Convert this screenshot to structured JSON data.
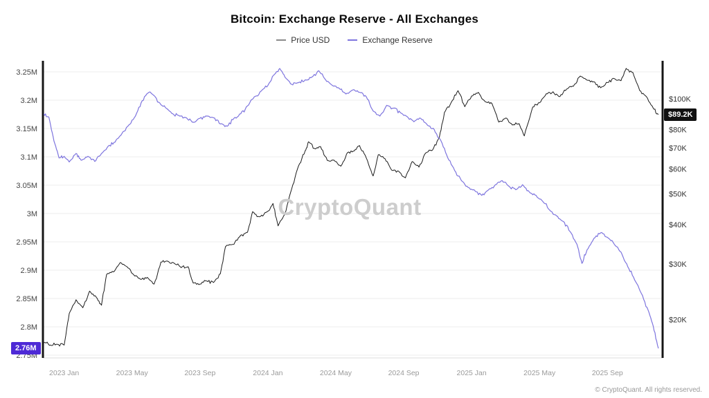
{
  "header": {
    "title": "Bitcoin: Exchange Reserve - All Exchanges"
  },
  "legend": [
    {
      "label": "Price USD",
      "color": "#8a8a8a"
    },
    {
      "label": "Exchange Reserve",
      "color": "#7d74de"
    }
  ],
  "badges": {
    "reserve_current": "2.76M",
    "reserve_badge_color": "#4e2ad6",
    "price_current": "$89.2K",
    "price_badge_color": "#111111"
  },
  "watermark": "CryptoQuant",
  "footer": "© CryptoQuant. All rights reserved.",
  "chart_data": {
    "type": "line",
    "title": "Bitcoin: Exchange Reserve - All Exchanges",
    "x_unit": "months since 2023 Jan",
    "x_domain": [
      -1.25,
      35.25
    ],
    "x_ticks": [
      {
        "m": 0,
        "label": "2023 Jan"
      },
      {
        "m": 4,
        "label": "2023 May"
      },
      {
        "m": 8,
        "label": "2023 Sep"
      },
      {
        "m": 12,
        "label": "2024 Jan"
      },
      {
        "m": 16,
        "label": "2024 May"
      },
      {
        "m": 20,
        "label": "2024 Sep"
      },
      {
        "m": 24,
        "label": "2025 Jan"
      },
      {
        "m": 28,
        "label": "2025 May"
      },
      {
        "m": 32,
        "label": "2025 Sep"
      }
    ],
    "left_axis": {
      "name": "Exchange Reserve (BTC)",
      "scale": "linear",
      "min": 2.75,
      "max": 3.25,
      "ticks": [
        {
          "v": 3.25,
          "label": "3.25M"
        },
        {
          "v": 3.2,
          "label": "3.2M"
        },
        {
          "v": 3.15,
          "label": "3.15M"
        },
        {
          "v": 3.1,
          "label": "3.1M"
        },
        {
          "v": 3.05,
          "label": "3.05M"
        },
        {
          "v": 3.0,
          "label": "3M"
        },
        {
          "v": 2.95,
          "label": "2.95M"
        },
        {
          "v": 2.9,
          "label": "2.9M"
        },
        {
          "v": 2.85,
          "label": "2.85M"
        },
        {
          "v": 2.8,
          "label": "2.8M"
        },
        {
          "v": 2.75,
          "label": "2.75M"
        }
      ]
    },
    "right_axis": {
      "name": "Price USD",
      "scale": "log",
      "ticks": [
        {
          "v": 100,
          "label": "$100K"
        },
        {
          "v": 80,
          "label": "$80K"
        },
        {
          "v": 70,
          "label": "$70K"
        },
        {
          "v": 60,
          "label": "$60K"
        },
        {
          "v": 50,
          "label": "$50K"
        },
        {
          "v": 40,
          "label": "$40K"
        },
        {
          "v": 30,
          "label": "$30K"
        },
        {
          "v": 20,
          "label": "$20K"
        }
      ]
    },
    "series": [
      {
        "name": "Price USD",
        "axis": "right",
        "color": "#1a1a1a",
        "unit": "thousand USD",
        "points": [
          [
            -1.2,
            16.9
          ],
          [
            -0.8,
            16.6
          ],
          [
            -0.4,
            16.7
          ],
          [
            0,
            16.6
          ],
          [
            0.3,
            20.9
          ],
          [
            0.7,
            23.1
          ],
          [
            1.1,
            21.8
          ],
          [
            1.5,
            24.6
          ],
          [
            1.9,
            23.5
          ],
          [
            2.2,
            22.2
          ],
          [
            2.5,
            27.8
          ],
          [
            2.9,
            28.3
          ],
          [
            3.3,
            30.3
          ],
          [
            3.7,
            29.4
          ],
          [
            4.1,
            27.7
          ],
          [
            4.5,
            26.8
          ],
          [
            4.9,
            27.2
          ],
          [
            5.3,
            25.9
          ],
          [
            5.7,
            30.4
          ],
          [
            6.1,
            30.6
          ],
          [
            6.5,
            30.1
          ],
          [
            6.9,
            29.2
          ],
          [
            7.3,
            29.4
          ],
          [
            7.6,
            26.1
          ],
          [
            8,
            25.9
          ],
          [
            8.4,
            26.5
          ],
          [
            8.8,
            26.2
          ],
          [
            9.2,
            27.9
          ],
          [
            9.5,
            34
          ],
          [
            10,
            34.6
          ],
          [
            10.4,
            37
          ],
          [
            10.8,
            37.8
          ],
          [
            11.1,
            43.9
          ],
          [
            11.5,
            42.3
          ],
          [
            11.9,
            43.7
          ],
          [
            12.3,
            46.6
          ],
          [
            12.6,
            39.6
          ],
          [
            13,
            43.1
          ],
          [
            13.4,
            51.8
          ],
          [
            13.8,
            61.2
          ],
          [
            14.2,
            68.5
          ],
          [
            14.4,
            73.1
          ],
          [
            14.8,
            69.4
          ],
          [
            15.1,
            70.6
          ],
          [
            15.5,
            63.8
          ],
          [
            15.9,
            63.9
          ],
          [
            16.3,
            61.2
          ],
          [
            16.7,
            67.6
          ],
          [
            17.1,
            68.5
          ],
          [
            17.4,
            71.1
          ],
          [
            17.8,
            64.9
          ],
          [
            18.2,
            57.0
          ],
          [
            18.5,
            66.5
          ],
          [
            18.9,
            64.6
          ],
          [
            19.3,
            59.4
          ],
          [
            19.7,
            59.0
          ],
          [
            20.1,
            56.2
          ],
          [
            20.5,
            63.3
          ],
          [
            20.9,
            60.8
          ],
          [
            21.3,
            67.4
          ],
          [
            21.7,
            68.8
          ],
          [
            22.1,
            75.6
          ],
          [
            22.4,
            90.5
          ],
          [
            22.8,
            97.4
          ],
          [
            23.2,
            106.1
          ],
          [
            23.6,
            94.4
          ],
          [
            24.0,
            102.1
          ],
          [
            24.4,
            104.8
          ],
          [
            24.8,
            97.9
          ],
          [
            25.2,
            96.6
          ],
          [
            25.6,
            84.4
          ],
          [
            26.0,
            86.9
          ],
          [
            26.4,
            82.6
          ],
          [
            26.8,
            83.4
          ],
          [
            27.1,
            76.3
          ],
          [
            27.6,
            94.2
          ],
          [
            28.0,
            97.1
          ],
          [
            28.4,
            103.8
          ],
          [
            28.8,
            105.3
          ],
          [
            29.2,
            101.6
          ],
          [
            29.6,
            107.4
          ],
          [
            30.0,
            109.6
          ],
          [
            30.4,
            118.0
          ],
          [
            30.8,
            114.6
          ],
          [
            31.2,
            113.3
          ],
          [
            31.6,
            108.4
          ],
          [
            32.0,
            112.6
          ],
          [
            32.4,
            115.9
          ],
          [
            32.8,
            114.1
          ],
          [
            33.1,
            124.8
          ],
          [
            33.5,
            121.1
          ],
          [
            33.9,
            106.2
          ],
          [
            34.3,
            101.5
          ],
          [
            34.7,
            93.4
          ],
          [
            35.0,
            89.2
          ]
        ]
      },
      {
        "name": "Exchange Reserve",
        "axis": "left",
        "color": "#7d74de",
        "unit": "million BTC",
        "points": [
          [
            -1.2,
            3.176
          ],
          [
            -0.9,
            3.17
          ],
          [
            -0.6,
            3.128
          ],
          [
            -0.3,
            3.098
          ],
          [
            0,
            3.101
          ],
          [
            0.3,
            3.091
          ],
          [
            0.7,
            3.106
          ],
          [
            1.0,
            3.094
          ],
          [
            1.4,
            3.101
          ],
          [
            1.8,
            3.092
          ],
          [
            2.2,
            3.106
          ],
          [
            2.6,
            3.119
          ],
          [
            3.0,
            3.126
          ],
          [
            3.4,
            3.141
          ],
          [
            3.8,
            3.156
          ],
          [
            4.2,
            3.172
          ],
          [
            4.6,
            3.199
          ],
          [
            5.0,
            3.214
          ],
          [
            5.3,
            3.208
          ],
          [
            5.7,
            3.192
          ],
          [
            6.0,
            3.186
          ],
          [
            6.4,
            3.176
          ],
          [
            6.8,
            3.172
          ],
          [
            7.2,
            3.169
          ],
          [
            7.6,
            3.161
          ],
          [
            8.0,
            3.168
          ],
          [
            8.4,
            3.172
          ],
          [
            8.8,
            3.169
          ],
          [
            9.2,
            3.158
          ],
          [
            9.6,
            3.154
          ],
          [
            10.0,
            3.168
          ],
          [
            10.4,
            3.176
          ],
          [
            10.8,
            3.19
          ],
          [
            11.2,
            3.206
          ],
          [
            11.6,
            3.216
          ],
          [
            12.0,
            3.226
          ],
          [
            12.4,
            3.246
          ],
          [
            12.7,
            3.256
          ],
          [
            13.0,
            3.241
          ],
          [
            13.4,
            3.228
          ],
          [
            13.8,
            3.231
          ],
          [
            14.2,
            3.236
          ],
          [
            14.6,
            3.241
          ],
          [
            15.0,
            3.252
          ],
          [
            15.4,
            3.236
          ],
          [
            15.8,
            3.226
          ],
          [
            16.2,
            3.221
          ],
          [
            16.6,
            3.211
          ],
          [
            17.0,
            3.218
          ],
          [
            17.4,
            3.214
          ],
          [
            17.8,
            3.206
          ],
          [
            18.2,
            3.181
          ],
          [
            18.6,
            3.172
          ],
          [
            19.0,
            3.191
          ],
          [
            19.4,
            3.186
          ],
          [
            19.8,
            3.178
          ],
          [
            20.2,
            3.171
          ],
          [
            20.6,
            3.162
          ],
          [
            21.0,
            3.168
          ],
          [
            21.4,
            3.156
          ],
          [
            21.8,
            3.148
          ],
          [
            22.2,
            3.128
          ],
          [
            22.6,
            3.098
          ],
          [
            23.0,
            3.076
          ],
          [
            23.4,
            3.058
          ],
          [
            23.8,
            3.046
          ],
          [
            24.2,
            3.04
          ],
          [
            24.6,
            3.032
          ],
          [
            25.0,
            3.042
          ],
          [
            25.4,
            3.051
          ],
          [
            25.8,
            3.058
          ],
          [
            26.2,
            3.048
          ],
          [
            26.6,
            3.042
          ],
          [
            27.0,
            3.051
          ],
          [
            27.4,
            3.038
          ],
          [
            27.8,
            3.032
          ],
          [
            28.2,
            3.021
          ],
          [
            28.6,
            3.006
          ],
          [
            29.0,
            2.996
          ],
          [
            29.4,
            2.986
          ],
          [
            29.8,
            2.968
          ],
          [
            30.2,
            2.946
          ],
          [
            30.5,
            2.912
          ],
          [
            30.8,
            2.936
          ],
          [
            31.2,
            2.956
          ],
          [
            31.6,
            2.966
          ],
          [
            32.0,
            2.958
          ],
          [
            32.4,
            2.946
          ],
          [
            32.8,
            2.932
          ],
          [
            33.2,
            2.906
          ],
          [
            33.6,
            2.883
          ],
          [
            34.0,
            2.859
          ],
          [
            34.4,
            2.829
          ],
          [
            34.7,
            2.801
          ],
          [
            35.0,
            2.762
          ]
        ]
      }
    ],
    "annotations": [
      {
        "text": "2.76M",
        "type": "last-value-badge",
        "series": "Exchange Reserve"
      },
      {
        "text": "$89.2K",
        "type": "last-value-badge",
        "series": "Price USD"
      }
    ],
    "grid": "horizontal",
    "legend_position": "top-center"
  }
}
